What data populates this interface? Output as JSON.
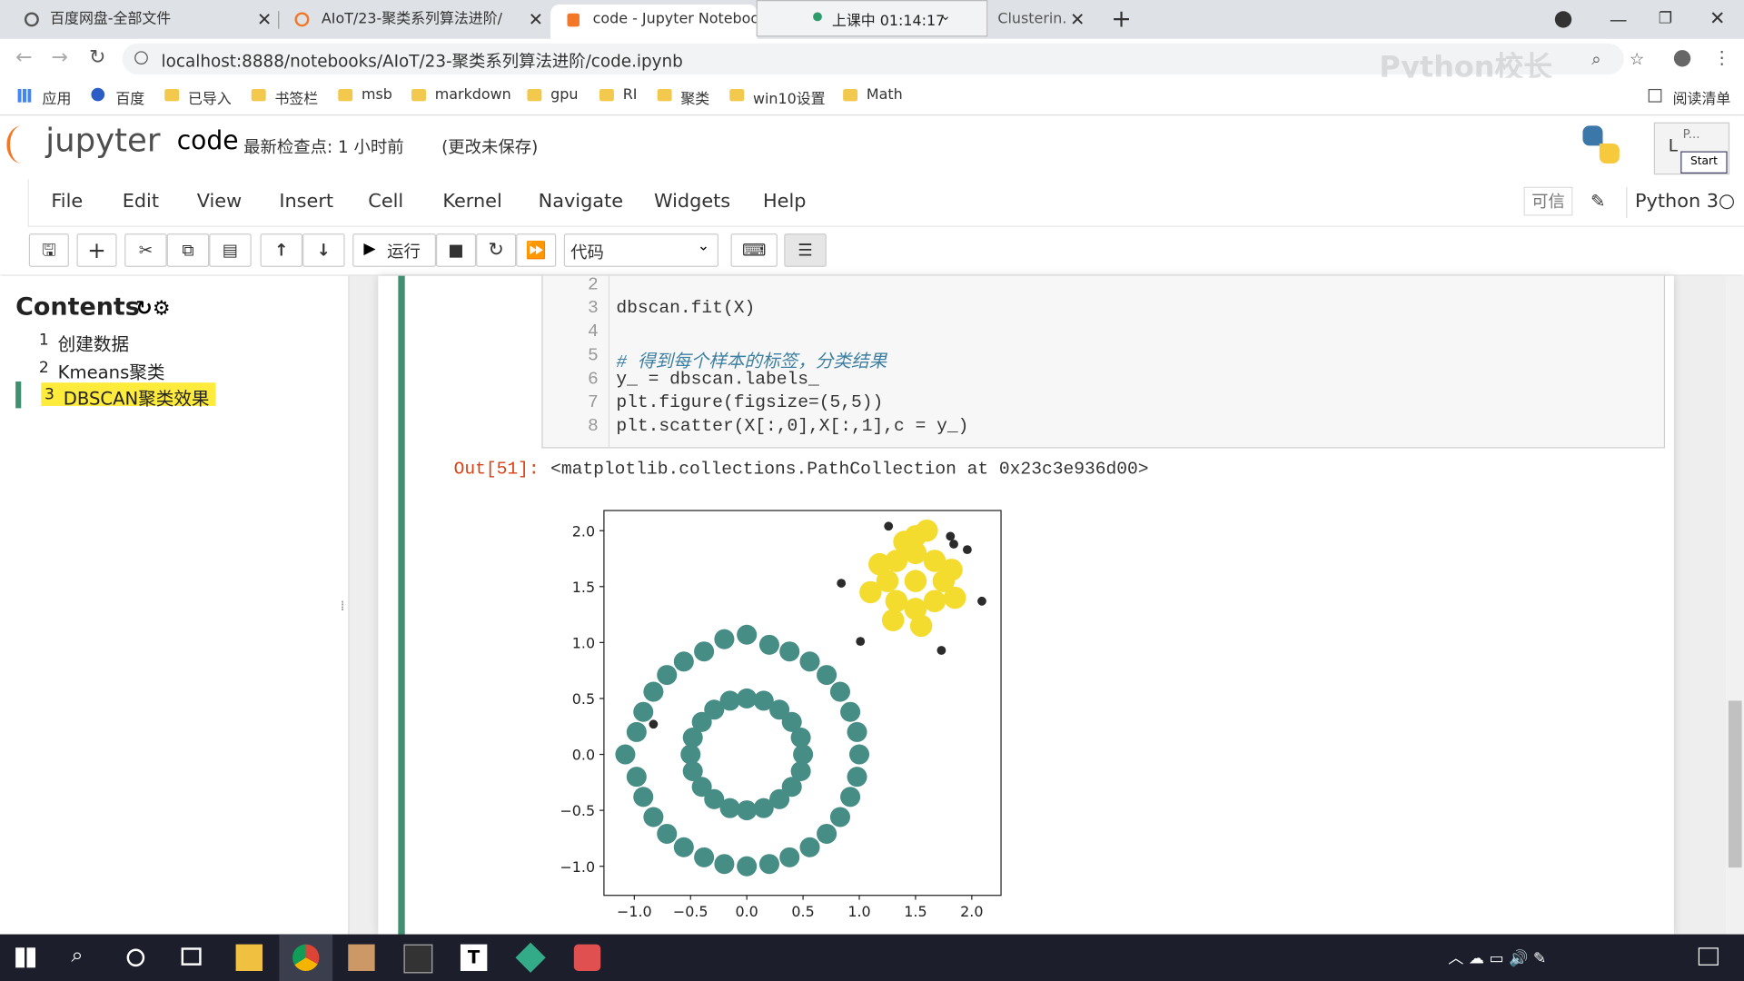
{
  "browser": {
    "tabs": [
      {
        "title": "百度网盘-全部文件"
      },
      {
        "title": "AIoT/23-聚类系列算法进阶/"
      },
      {
        "title": "code - Jupyter Notebook"
      },
      {
        "title": "Clusterin."
      }
    ],
    "recording": "上课中 01:14:17",
    "address": "localhost:8888/notebooks/AIoT/23-聚类系列算法进阶/code.ipynb",
    "bookmarks": [
      "应用",
      "百度",
      "已导入",
      "书签栏",
      "msb",
      "markdown",
      "gpu",
      "RI",
      "聚类",
      "win10设置",
      "Math"
    ],
    "reading_list": "阅读清单",
    "watermark": "Python校长"
  },
  "jupyter": {
    "logo": "jupyter",
    "notebook": "code",
    "checkpoint": "最新检查点: 1 小时前",
    "status": "(更改未保存)",
    "menu": [
      "File",
      "Edit",
      "View",
      "Insert",
      "Cell",
      "Kernel",
      "Navigate",
      "Widgets",
      "Help"
    ],
    "trusted": "可信",
    "kernel": "Python 3",
    "run": "运行",
    "cell_type": "代码",
    "popup": {
      "title": "P...",
      "button": "Start",
      "side": "L"
    }
  },
  "toc": {
    "title": "Contents",
    "items": [
      {
        "number": 1,
        "label": "创建数据"
      },
      {
        "number": 2,
        "label": "Kmeans聚类"
      },
      {
        "number": 3,
        "label": "DBSCAN聚类效果"
      }
    ]
  },
  "cell": {
    "lines": [
      {
        "number": 2
      },
      {
        "number": 3,
        "code": "dbscan.fit(X)"
      },
      {
        "number": 4
      },
      {
        "number": 5,
        "code": "# 得到每个样本的标签，分类结果"
      },
      {
        "number": 6,
        "code": "y_ = dbscan.labels_"
      },
      {
        "number": 7,
        "code": "plt.figure(figsize=(5,5))"
      },
      {
        "number": 8,
        "code": "plt.scatter(X[:,0],X[:,1],c = y_)"
      }
    ],
    "out_prompt": "Out[51]:",
    "output": "<matplotlib.collections.PathCollection at 0x23c3e936d00>"
  },
  "chart_data": {
    "type": "scatter",
    "xlim": [
      -1.27,
      2.26
    ],
    "ylim": [
      -1.26,
      2.18
    ],
    "xticks": [
      {
        "value": -1,
        "label": "−1.0"
      },
      {
        "value": -0.5,
        "label": "−0.5"
      },
      {
        "value": 0,
        "label": "0.0"
      },
      {
        "value": 0.5,
        "label": "0.5"
      },
      {
        "value": 1,
        "label": "1.0"
      },
      {
        "value": 1.5,
        "label": "1.5"
      },
      {
        "value": 2,
        "label": "2.0"
      }
    ],
    "yticks": [
      {
        "value": -1,
        "label": "−1.0"
      },
      {
        "value": -0.5,
        "label": "−0.5"
      },
      {
        "value": 0,
        "label": "0.0"
      },
      {
        "value": 0.5,
        "label": "0.5"
      },
      {
        "value": 1,
        "label": "1.0"
      },
      {
        "value": 1.5,
        "label": "1.5"
      },
      {
        "value": 2,
        "label": "2.0"
      }
    ],
    "grid": false,
    "series": [
      {
        "color": "#468d85",
        "x": [
          1,
          0.98,
          0.92,
          0.83,
          0.71,
          0.56,
          0.38,
          0.2,
          0,
          -0.2,
          -0.38,
          -0.56,
          -0.71,
          -0.83,
          -0.92,
          -0.98,
          -1.08,
          -0.98,
          -0.92,
          -0.83,
          -0.71,
          -0.56,
          -0.38,
          -0.2,
          0,
          0.2,
          0.38,
          0.56,
          0.71,
          0.83,
          0.92,
          0.98,
          0.5,
          0.48,
          0.4,
          0.29,
          0.15,
          0,
          -0.15,
          -0.29,
          -0.4,
          -0.48,
          -0.5,
          -0.48,
          -0.4,
          -0.29,
          -0.15,
          0,
          0.15,
          0.29,
          0.4,
          0.48
        ],
        "y": [
          0,
          0.2,
          0.38,
          0.56,
          0.71,
          0.83,
          0.92,
          0.98,
          1.07,
          1.03,
          0.92,
          0.83,
          0.71,
          0.56,
          0.38,
          0.2,
          0,
          -0.2,
          -0.38,
          -0.56,
          -0.71,
          -0.83,
          -0.92,
          -0.98,
          -1,
          -0.98,
          -0.92,
          -0.83,
          -0.71,
          -0.56,
          -0.38,
          -0.2,
          0,
          0.15,
          0.29,
          0.4,
          0.48,
          0.5,
          0.48,
          0.4,
          0.29,
          0.15,
          0,
          -0.15,
          -0.29,
          -0.4,
          -0.48,
          -0.5,
          -0.48,
          -0.4,
          -0.29,
          -0.15
        ]
      },
      {
        "color": "#f4dc2e",
        "x": [
          1.5,
          1.5,
          1.5,
          1.25,
          1.75,
          1.33,
          1.67,
          1.33,
          1.67,
          1.5,
          1.18,
          1.82,
          1.3,
          1.55,
          1.1,
          1.85,
          1.6,
          1.4
        ],
        "y": [
          1.55,
          1.8,
          1.3,
          1.55,
          1.55,
          1.73,
          1.73,
          1.37,
          1.37,
          1.95,
          1.7,
          1.65,
          1.2,
          1.15,
          1.45,
          1.4,
          2,
          1.9
        ]
      },
      {
        "color": "#2b2b2b",
        "x": [
          1.26,
          1.81,
          1.84,
          1.96,
          0.84,
          2.09,
          1.01,
          1.73,
          -0.83
        ],
        "y": [
          2.04,
          1.95,
          1.88,
          1.83,
          1.53,
          1.37,
          1.01,
          0.93,
          0.27
        ]
      }
    ]
  }
}
